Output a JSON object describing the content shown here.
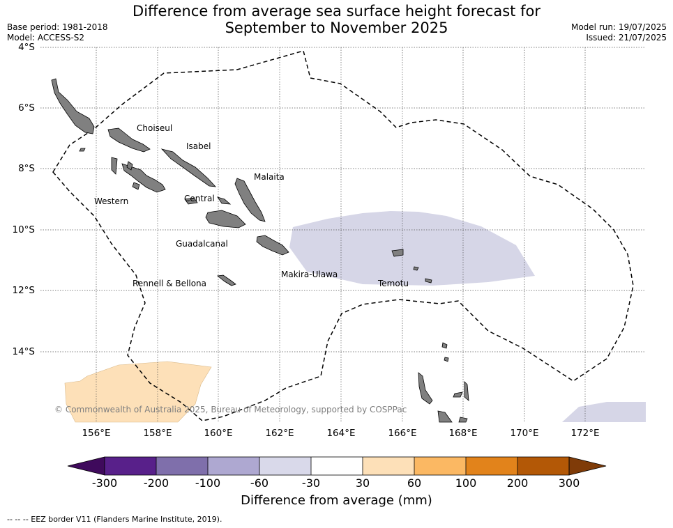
{
  "header": {
    "title_line1": "Difference from average sea surface height forecast for",
    "title_line2": "September to November 2025",
    "base_period": "Base period: 1981-2018",
    "model": "Model: ACCESS-S2",
    "model_run": "Model run: 19/07/2025",
    "issued": "Issued: 21/07/2025"
  },
  "map": {
    "lat_labels": [
      "4°S",
      "6°S",
      "8°S",
      "10°S",
      "12°S",
      "14°S"
    ],
    "lon_labels": [
      "156°E",
      "158°E",
      "160°E",
      "162°E",
      "164°E",
      "166°E",
      "168°E",
      "170°E",
      "172°E"
    ],
    "regions": [
      "Choiseul",
      "Isabel",
      "Malaita",
      "Western",
      "Central",
      "Guadalcanal",
      "Makira-Ulawa",
      "Rennell & Bellona",
      "Temotu"
    ],
    "copyright": "© Commonwealth of Australia 2025, Bureau of Meteorology, supported by COSPPac",
    "land_color": "#808080",
    "eez_border_style": "dashed"
  },
  "colorbar": {
    "ticks": [
      "-300",
      "-200",
      "-100",
      "-60",
      "-30",
      "30",
      "60",
      "100",
      "200",
      "300"
    ],
    "colors": [
      "#3f0a5c",
      "#58208a",
      "#7f6fab",
      "#aea8d1",
      "#d9d9ea",
      "#ffffff",
      "#fde0b8",
      "#fbb863",
      "#e2831b",
      "#b35806",
      "#7f3b08"
    ],
    "title": "Difference from average (mm)"
  },
  "footnote": "--  --  -- EEZ border V11 (Flanders Marine Institute, 2019)."
}
